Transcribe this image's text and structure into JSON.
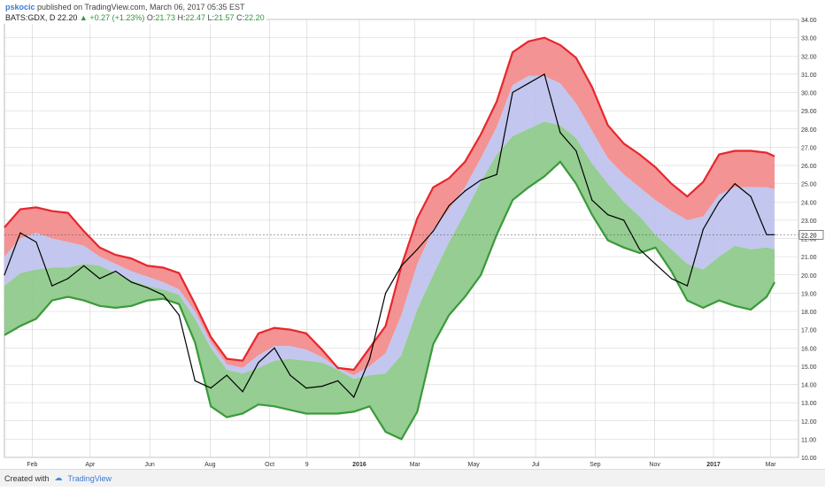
{
  "header": {
    "author": "pskocic",
    "published_text": "published on TradingView.com, March 06, 2017 05:35 EST",
    "symbol": "BATS:GDX, D",
    "last": "22.20",
    "change_icon": "triangle-up-icon",
    "change": "+0.27 (+1.23%)",
    "open_label": "O:",
    "open": "21.73",
    "high_label": "H:",
    "high": "22.47",
    "low_label": "L:",
    "low": "21.57",
    "close_label": "C:",
    "close": "22.20"
  },
  "footer": {
    "created_with": "Created with",
    "brand": "TradingView",
    "logo_icon": "tradingview-cloud-icon"
  },
  "colors": {
    "price": "#000000",
    "upper_band": "#f28d8d",
    "upper_edge": "#e8262c",
    "middle_band": "#bcc0ec",
    "lower_band": "#8fca8c",
    "lower_edge": "#3a9a3a",
    "last_price_tag": "#ffffff",
    "grid": "#d0d0d0"
  },
  "chart_data": {
    "type": "line",
    "title": "",
    "ylim": [
      10.0,
      34.0
    ],
    "grid": true,
    "price_axis_side": "right",
    "y_ticks": [
      "10.00",
      "11.00",
      "12.00",
      "13.00",
      "14.00",
      "15.00",
      "16.00",
      "17.00",
      "18.00",
      "19.00",
      "20.00",
      "21.00",
      "22.00",
      "23.00",
      "24.00",
      "25.00",
      "26.00",
      "27.00",
      "28.00",
      "29.00",
      "30.00",
      "31.00",
      "32.00",
      "33.00",
      "34.00"
    ],
    "x_ticks": [
      {
        "label": "Feb",
        "t": 0.035
      },
      {
        "label": "Apr",
        "t": 0.108
      },
      {
        "label": "Jun",
        "t": 0.183
      },
      {
        "label": "Aug",
        "t": 0.259
      },
      {
        "label": "Oct",
        "t": 0.334
      },
      {
        "label": "9",
        "t": 0.381
      },
      {
        "label": "2016",
        "t": 0.447
      },
      {
        "label": "Mar",
        "t": 0.517
      },
      {
        "label": "May",
        "t": 0.591
      },
      {
        "label": "Jul",
        "t": 0.669
      },
      {
        "label": "Sep",
        "t": 0.744
      },
      {
        "label": "Nov",
        "t": 0.819
      },
      {
        "label": "2017",
        "t": 0.893
      },
      {
        "label": "Mar",
        "t": 0.965
      }
    ],
    "last_price_tag": "22.20",
    "last_price": 22.2,
    "x": [
      0.0,
      0.02,
      0.04,
      0.06,
      0.08,
      0.1,
      0.12,
      0.14,
      0.16,
      0.18,
      0.2,
      0.22,
      0.24,
      0.26,
      0.28,
      0.3,
      0.32,
      0.34,
      0.36,
      0.38,
      0.4,
      0.42,
      0.44,
      0.46,
      0.48,
      0.5,
      0.52,
      0.54,
      0.56,
      0.58,
      0.6,
      0.62,
      0.64,
      0.66,
      0.68,
      0.7,
      0.72,
      0.74,
      0.76,
      0.78,
      0.8,
      0.82,
      0.84,
      0.86,
      0.88,
      0.9,
      0.92,
      0.94,
      0.96,
      0.97
    ],
    "series": [
      {
        "name": "",
        "values": [
          20.0,
          22.3,
          21.8,
          19.4,
          19.8,
          20.5,
          19.8,
          20.2,
          19.6,
          19.3,
          18.9,
          17.8,
          14.2,
          13.8,
          14.5,
          13.6,
          15.2,
          16.0,
          14.5,
          13.8,
          13.9,
          14.2,
          13.3,
          15.4,
          19.0,
          20.5,
          21.4,
          22.4,
          23.8,
          24.6,
          25.2,
          25.5,
          30.0,
          30.5,
          31.0,
          27.8,
          26.8,
          24.1,
          23.3,
          23.0,
          21.4,
          20.6,
          19.8,
          19.4,
          22.5,
          24.0,
          25.0,
          24.3,
          22.2,
          22.2
        ]
      },
      {
        "name": "",
        "values": [
          22.6,
          23.6,
          23.7,
          23.5,
          23.4,
          22.4,
          21.5,
          21.1,
          20.9,
          20.5,
          20.4,
          20.1,
          18.4,
          16.6,
          15.4,
          15.3,
          16.8,
          17.1,
          17.0,
          16.8,
          15.9,
          14.9,
          14.8,
          16.0,
          17.2,
          20.5,
          23.1,
          24.8,
          25.3,
          26.2,
          27.7,
          29.5,
          32.2,
          32.8,
          33.0,
          32.6,
          31.9,
          30.3,
          28.2,
          27.2,
          26.6,
          25.9,
          25.0,
          24.3,
          25.1,
          26.6,
          26.8,
          26.8,
          26.7,
          26.5
        ]
      },
      {
        "name": "",
        "values": [
          21.0,
          22.0,
          22.3,
          22.0,
          21.8,
          21.6,
          21.0,
          20.6,
          20.2,
          19.9,
          19.6,
          19.2,
          18.0,
          16.3,
          15.1,
          14.9,
          15.6,
          16.1,
          16.1,
          15.9,
          15.5,
          14.9,
          14.5,
          15.0,
          15.7,
          17.8,
          20.6,
          22.5,
          23.6,
          24.8,
          26.4,
          28.1,
          30.4,
          30.9,
          30.9,
          30.5,
          29.4,
          27.9,
          26.4,
          25.5,
          24.8,
          24.1,
          23.5,
          23.0,
          23.2,
          24.4,
          24.8,
          24.8,
          24.8,
          24.7
        ]
      },
      {
        "name": "",
        "values": [
          19.4,
          20.1,
          20.3,
          20.4,
          20.4,
          20.6,
          20.5,
          20.1,
          19.7,
          19.4,
          19.2,
          18.9,
          17.6,
          16.0,
          14.8,
          14.6,
          14.9,
          15.3,
          15.4,
          15.3,
          15.2,
          14.8,
          14.3,
          14.5,
          14.6,
          15.6,
          18.1,
          20.0,
          21.8,
          23.4,
          25.1,
          26.6,
          27.6,
          28.0,
          28.4,
          28.2,
          27.5,
          26.1,
          25.0,
          24.0,
          23.2,
          22.2,
          21.4,
          20.6,
          20.3,
          21.0,
          21.6,
          21.4,
          21.5,
          21.4
        ]
      },
      {
        "name": "",
        "values": [
          16.7,
          17.2,
          17.6,
          18.6,
          18.8,
          18.6,
          18.3,
          18.2,
          18.3,
          18.6,
          18.7,
          18.4,
          16.3,
          12.8,
          12.2,
          12.4,
          12.9,
          12.8,
          12.6,
          12.4,
          12.4,
          12.4,
          12.5,
          12.8,
          11.4,
          11.0,
          12.5,
          16.2,
          17.8,
          18.8,
          20.0,
          22.2,
          24.1,
          24.8,
          25.4,
          26.2,
          25.0,
          23.3,
          21.9,
          21.5,
          21.2,
          21.5,
          20.2,
          18.6,
          18.2,
          18.6,
          18.3,
          18.1,
          18.8,
          19.6
        ]
      }
    ]
  }
}
